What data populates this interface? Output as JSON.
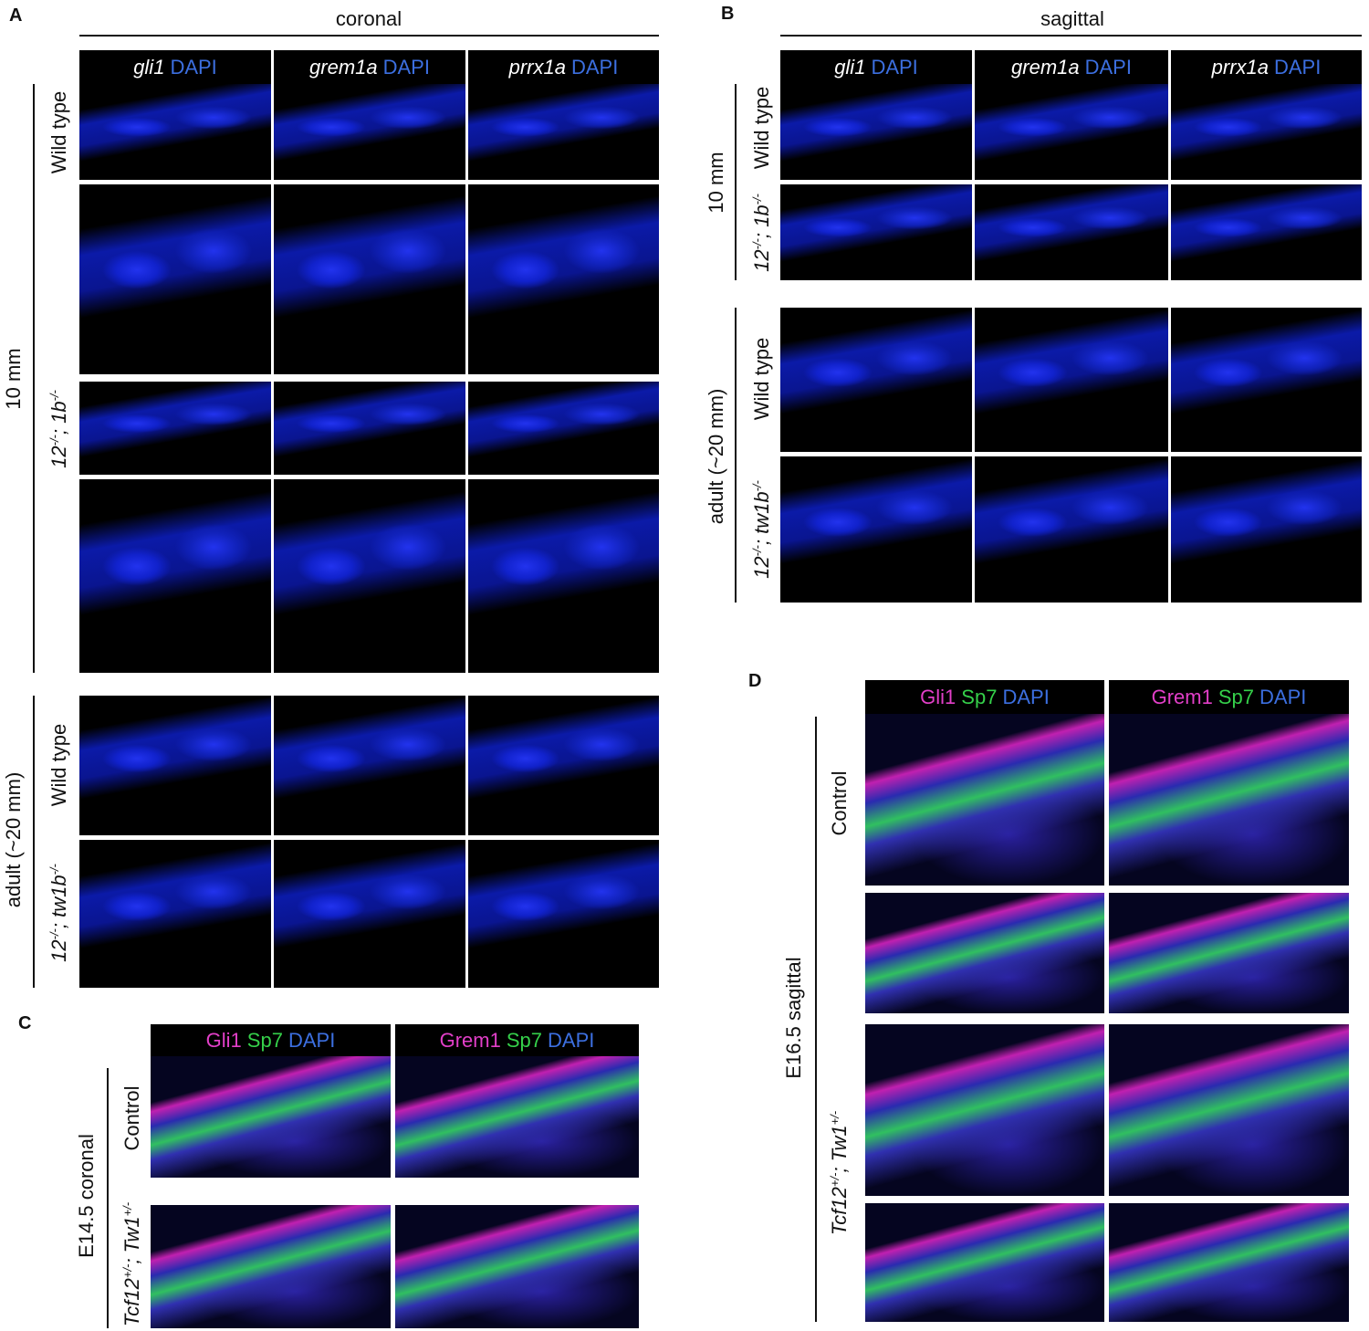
{
  "panels": [
    {
      "letter": "A",
      "plane": "coronal",
      "columns": [
        {
          "gene": "gli1",
          "stain": "DAPI"
        },
        {
          "gene": "grem1a",
          "stain": "DAPI"
        },
        {
          "gene": "prrx1a",
          "stain": "DAPI"
        }
      ],
      "stages": [
        {
          "stage": "10 mm",
          "rows": [
            {
              "genotype": [
                {
                  "text": "Wild type"
                }
              ]
            },
            {
              "genotype": [
                {
                  "text": "12",
                  "sup": "-/-"
                },
                {
                  "text": "; 1b",
                  "sup": "-/-"
                }
              ]
            }
          ]
        },
        {
          "stage": "adult (~20 mm)",
          "rows": [
            {
              "genotype": [
                {
                  "text": "Wild type"
                }
              ]
            },
            {
              "genotype": [
                {
                  "text": "12",
                  "sup": "-/-"
                },
                {
                  "text": "; tw1b",
                  "sup": "-/-"
                }
              ]
            }
          ]
        }
      ]
    },
    {
      "letter": "B",
      "plane": "sagittal",
      "columns": [
        {
          "gene": "gli1",
          "stain": "DAPI"
        },
        {
          "gene": "grem1a",
          "stain": "DAPI"
        },
        {
          "gene": "prrx1a",
          "stain": "DAPI"
        }
      ],
      "stages": [
        {
          "stage": "10 mm",
          "rows": [
            {
              "genotype": [
                {
                  "text": "Wild type"
                }
              ]
            },
            {
              "genotype": [
                {
                  "text": "12",
                  "sup": "-/-"
                },
                {
                  "text": "; 1b",
                  "sup": "-/-"
                }
              ]
            }
          ]
        },
        {
          "stage": "adult (~20 mm)",
          "rows": [
            {
              "genotype": [
                {
                  "text": "Wild type"
                }
              ]
            },
            {
              "genotype": [
                {
                  "text": "12",
                  "sup": "-/-"
                },
                {
                  "text": "; tw1b",
                  "sup": "-/-"
                }
              ]
            }
          ]
        }
      ]
    },
    {
      "letter": "C",
      "columns": [
        {
          "stains": [
            "Gli1",
            "Sp7",
            "DAPI"
          ]
        },
        {
          "stains": [
            "Grem1",
            "Sp7",
            "DAPI"
          ]
        }
      ],
      "stages": [
        {
          "stage": "E14.5 coronal",
          "rows": [
            {
              "genotype": [
                {
                  "text": "Control"
                }
              ]
            },
            {
              "genotype": [
                {
                  "text": "Tcf12",
                  "sup": "+/-"
                },
                {
                  "text": "; Tw1",
                  "sup": "+/-"
                }
              ]
            }
          ]
        }
      ]
    },
    {
      "letter": "D",
      "columns": [
        {
          "stains": [
            "Gli1",
            "Sp7",
            "DAPI"
          ]
        },
        {
          "stains": [
            "Grem1",
            "Sp7",
            "DAPI"
          ]
        }
      ],
      "stages": [
        {
          "stage": "E16.5 sagittal",
          "rows": [
            {
              "genotype": [
                {
                  "text": "Control"
                }
              ]
            },
            {
              "genotype": [
                {
                  "text": "Tcf12",
                  "sup": "+/-"
                },
                {
                  "text": "; Tw1",
                  "sup": "+/-"
                }
              ]
            }
          ]
        }
      ]
    }
  ]
}
